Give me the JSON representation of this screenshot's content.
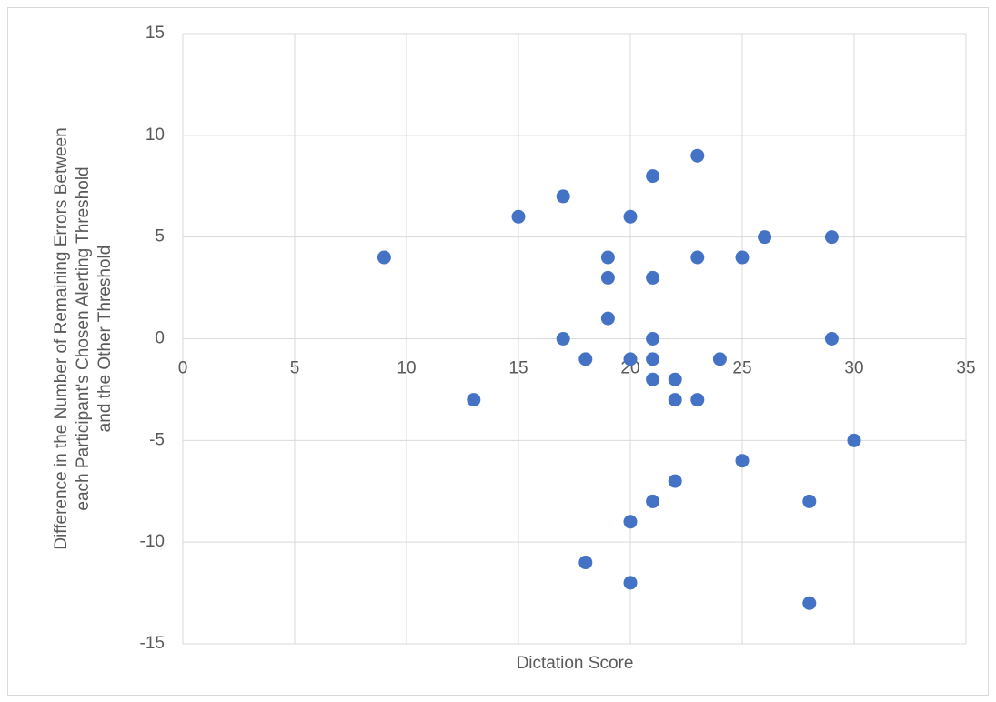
{
  "chart_data": {
    "type": "scatter",
    "x_label": "Dictation Score",
    "y_label": [
      "Difference in the Number of Remaining Errors Between",
      "each Participant's Chosen Alerting Threshold",
      "and the Other Threshold"
    ],
    "x": [
      9,
      13,
      15,
      17,
      17,
      18,
      18,
      19,
      19,
      19,
      20,
      20,
      20,
      20,
      21,
      21,
      21,
      21,
      21,
      21,
      22,
      22,
      22,
      23,
      23,
      23,
      24,
      25,
      25,
      26,
      28,
      28,
      29,
      29,
      30
    ],
    "values": [
      4,
      -3,
      6,
      7,
      0,
      -1,
      -11,
      4,
      3,
      1,
      6,
      -1,
      -9,
      -12,
      8,
      3,
      0,
      -1,
      -2,
      -8,
      -2,
      -3,
      -7,
      9,
      4,
      -3,
      -1,
      4,
      -6,
      5,
      -8,
      -13,
      5,
      0,
      -5
    ],
    "color": "#4472c4",
    "xlim": [
      0,
      35
    ],
    "xticks": [
      0,
      5,
      10,
      15,
      20,
      25,
      30,
      35
    ],
    "ylim": [
      -15,
      15
    ],
    "yticks": [
      -15,
      -10,
      -5,
      0,
      5,
      10,
      15
    ],
    "grid": true
  }
}
